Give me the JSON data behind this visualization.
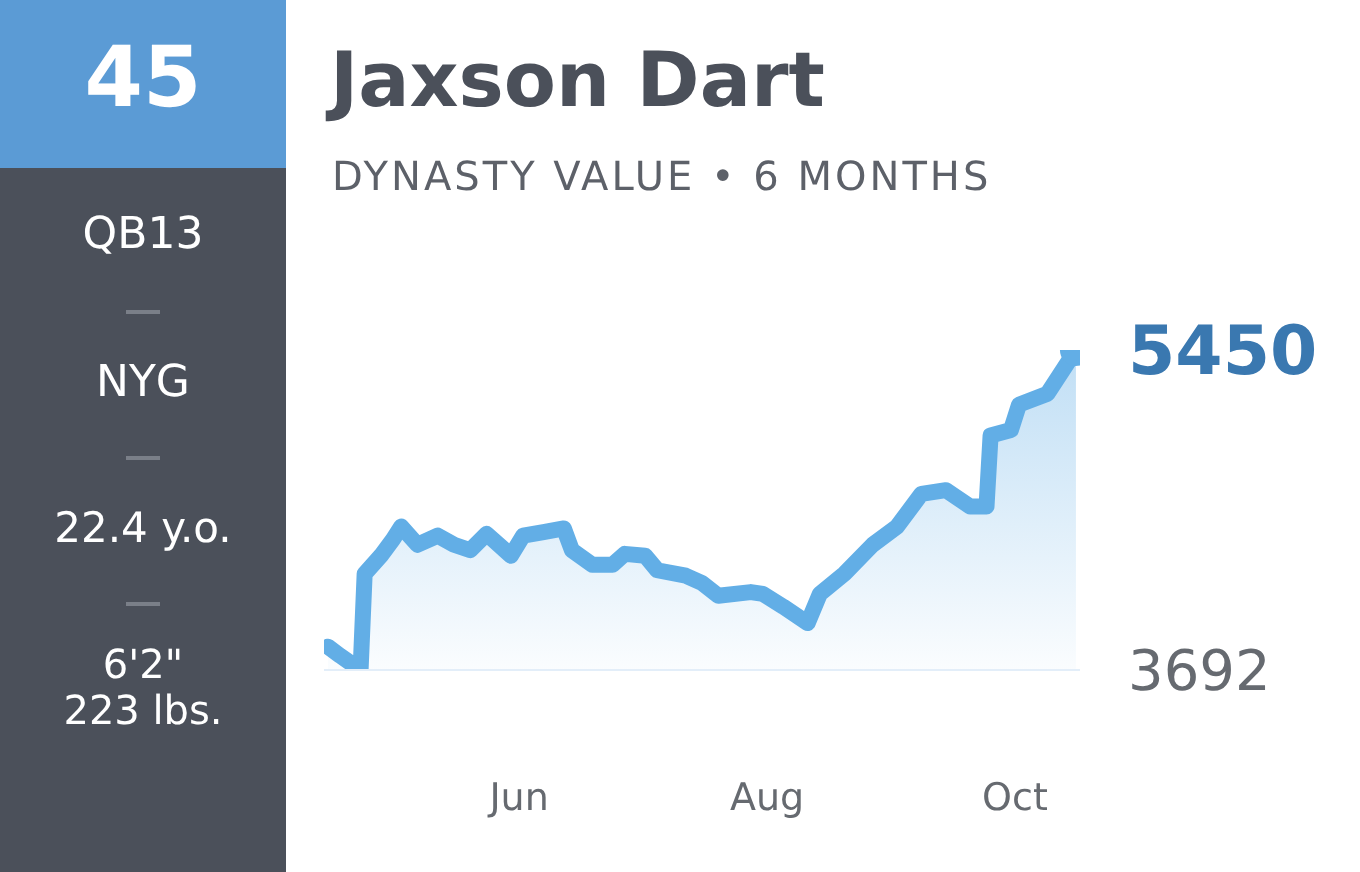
{
  "chart_data": {
    "type": "area",
    "title": "Jaxson Dart",
    "subtitle": "DYNASTY VALUE • 6 MONTHS",
    "annotations": [
      "45",
      "QB13",
      "NYG",
      "22.4 y.o.",
      "6'2\"",
      "223 lbs."
    ],
    "x": [
      "--04-15",
      "--04-18",
      "--04-23",
      "--04-24",
      "--04-28",
      "--05-01",
      "--05-03",
      "--05-07",
      "--05-12",
      "--05-16",
      "--05-20",
      "--05-24",
      "--05-27",
      "--05-30",
      "--06-02",
      "--06-07",
      "--06-12",
      "--06-14",
      "--06-19",
      "--06-24",
      "--06-27",
      "--07-02",
      "--07-05",
      "--07-12",
      "--07-16",
      "--07-20",
      "--07-28",
      "--07-31",
      "--08-05",
      "--08-11",
      "--08-14",
      "--08-20",
      "--08-27",
      "--09-02",
      "--09-08",
      "--09-14",
      "--09-20",
      "--09-24",
      "--09-25",
      "--09-30",
      "--10-02",
      "--10-09",
      "--10-16"
    ],
    "series": [
      {
        "color": "#62aee6",
        "values": [
          3820,
          3770,
          3692,
          4220,
          4320,
          4410,
          4480,
          4380,
          4430,
          4380,
          4350,
          4440,
          4380,
          4320,
          4430,
          4450,
          4470,
          4350,
          4270,
          4270,
          4330,
          4320,
          4240,
          4210,
          4170,
          4100,
          4120,
          4110,
          4040,
          3950,
          4110,
          4220,
          4380,
          4480,
          4660,
          4680,
          4590,
          4590,
          4980,
          5010,
          5150,
          5210,
          5450
        ]
      }
    ],
    "xlim": [
      "--04-14",
      "--10-17"
    ],
    "xticks": [
      {
        "value": "--06-01",
        "label": "Jun"
      },
      {
        "value": "--08-01",
        "label": "Aug"
      },
      {
        "value": "--10-01",
        "label": "Oct"
      }
    ],
    "ylim": [
      3692,
      5450
    ],
    "yticks": [
      3692,
      5450
    ],
    "grid": false,
    "legend": false
  }
}
